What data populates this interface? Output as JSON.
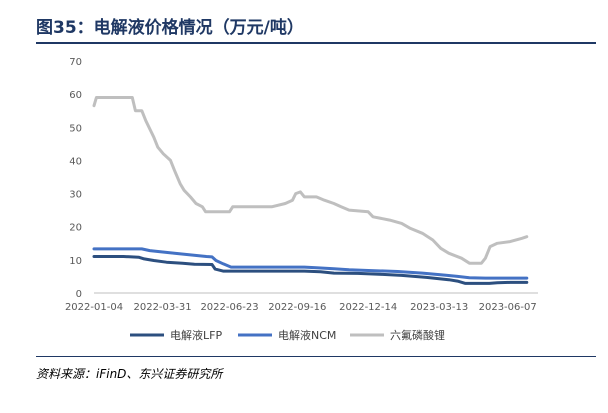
{
  "figure_title": "图35：电解液价格情况（万元/吨）",
  "source": "资料来源：iFinD、东兴证券研究所",
  "chart_data": {
    "type": "line",
    "ylim": [
      0,
      70
    ],
    "yticks": [
      0,
      10,
      20,
      30,
      40,
      50,
      60,
      70
    ],
    "xlabels": [
      "2022-01-04",
      "2022-03-31",
      "2022-06-23",
      "2022-09-16",
      "2022-12-14",
      "2023-03-13",
      "2023-06-07"
    ],
    "xrange": [
      "2022-01-04",
      "2023-07-05"
    ],
    "legend_position": "bottom",
    "grid": false,
    "series": [
      {
        "name": "电解液LFP",
        "color": "#2c4f7f",
        "points": [
          [
            "2022-01-04",
            11
          ],
          [
            "2022-02-10",
            11
          ],
          [
            "2022-03-01",
            10.8
          ],
          [
            "2022-03-08",
            10.3
          ],
          [
            "2022-03-20",
            9.8
          ],
          [
            "2022-04-05",
            9.3
          ],
          [
            "2022-04-25",
            9.0
          ],
          [
            "2022-05-10",
            8.7
          ],
          [
            "2022-06-01",
            8.6
          ],
          [
            "2022-06-05",
            7.2
          ],
          [
            "2022-06-15",
            6.6
          ],
          [
            "2022-07-05",
            6.6
          ],
          [
            "2022-08-15",
            6.6
          ],
          [
            "2022-09-25",
            6.6
          ],
          [
            "2022-10-15",
            6.4
          ],
          [
            "2022-11-01",
            6.0
          ],
          [
            "2022-12-01",
            5.9
          ],
          [
            "2023-01-01",
            5.6
          ],
          [
            "2023-01-25",
            5.3
          ],
          [
            "2023-02-25",
            4.7
          ],
          [
            "2023-03-25",
            4.0
          ],
          [
            "2023-04-05",
            3.6
          ],
          [
            "2023-04-15",
            2.9
          ],
          [
            "2023-05-15",
            2.9
          ],
          [
            "2023-05-25",
            3.1
          ],
          [
            "2023-06-10",
            3.2
          ],
          [
            "2023-07-01",
            3.2
          ]
        ]
      },
      {
        "name": "电解液NCM",
        "color": "#4472c4",
        "points": [
          [
            "2022-01-04",
            13.3
          ],
          [
            "2022-03-05",
            13.3
          ],
          [
            "2022-03-15",
            12.8
          ],
          [
            "2022-04-15",
            12.0
          ],
          [
            "2022-05-05",
            11.5
          ],
          [
            "2022-05-25",
            11.0
          ],
          [
            "2022-06-01",
            10.9
          ],
          [
            "2022-06-06",
            9.8
          ],
          [
            "2022-06-15",
            8.8
          ],
          [
            "2022-06-25",
            7.8
          ],
          [
            "2022-08-15",
            7.8
          ],
          [
            "2022-09-25",
            7.8
          ],
          [
            "2022-10-10",
            7.6
          ],
          [
            "2022-11-01",
            7.3
          ],
          [
            "2022-11-20",
            7.0
          ],
          [
            "2022-12-14",
            6.8
          ],
          [
            "2023-01-20",
            6.5
          ],
          [
            "2023-02-20",
            6.0
          ],
          [
            "2023-03-20",
            5.4
          ],
          [
            "2023-04-05",
            5.0
          ],
          [
            "2023-04-20",
            4.6
          ],
          [
            "2023-05-10",
            4.5
          ],
          [
            "2023-07-01",
            4.5
          ]
        ]
      },
      {
        "name": "六氟磷酸锂",
        "color": "#bfbfbf",
        "points": [
          [
            "2022-01-04",
            56.5
          ],
          [
            "2022-01-07",
            59.0
          ],
          [
            "2022-02-21",
            59.0
          ],
          [
            "2022-02-25",
            55.0
          ],
          [
            "2022-03-05",
            55.0
          ],
          [
            "2022-03-10",
            52.0
          ],
          [
            "2022-03-20",
            47.0
          ],
          [
            "2022-03-25",
            44.0
          ],
          [
            "2022-04-01",
            42.0
          ],
          [
            "2022-04-10",
            40.0
          ],
          [
            "2022-04-15",
            37.0
          ],
          [
            "2022-04-22",
            33.0
          ],
          [
            "2022-04-27",
            31.0
          ],
          [
            "2022-05-05",
            29.0
          ],
          [
            "2022-05-12",
            27.0
          ],
          [
            "2022-05-20",
            26.0
          ],
          [
            "2022-05-24",
            24.5
          ],
          [
            "2022-06-23",
            24.5
          ],
          [
            "2022-06-27",
            26.0
          ],
          [
            "2022-08-15",
            26.0
          ],
          [
            "2022-09-01",
            27.0
          ],
          [
            "2022-09-10",
            28.0
          ],
          [
            "2022-09-14",
            30.0
          ],
          [
            "2022-09-20",
            30.5
          ],
          [
            "2022-09-25",
            29.0
          ],
          [
            "2022-10-10",
            29.0
          ],
          [
            "2022-10-20",
            28.0
          ],
          [
            "2022-11-01",
            27.0
          ],
          [
            "2022-11-10",
            26.0
          ],
          [
            "2022-11-20",
            25.0
          ],
          [
            "2022-12-14",
            24.5
          ],
          [
            "2022-12-20",
            23.0
          ],
          [
            "2023-01-10",
            22.0
          ],
          [
            "2023-01-25",
            21.0
          ],
          [
            "2023-02-05",
            19.5
          ],
          [
            "2023-02-20",
            18.0
          ],
          [
            "2023-03-05",
            16.0
          ],
          [
            "2023-03-15",
            13.5
          ],
          [
            "2023-03-25",
            12.0
          ],
          [
            "2023-04-10",
            10.5
          ],
          [
            "2023-04-20",
            9.0
          ],
          [
            "2023-05-05",
            9.0
          ],
          [
            "2023-05-10",
            10.5
          ],
          [
            "2023-05-16",
            14.0
          ],
          [
            "2023-05-25",
            15.0
          ],
          [
            "2023-06-10",
            15.5
          ],
          [
            "2023-06-25",
            16.5
          ],
          [
            "2023-07-01",
            17.0
          ]
        ]
      }
    ]
  }
}
